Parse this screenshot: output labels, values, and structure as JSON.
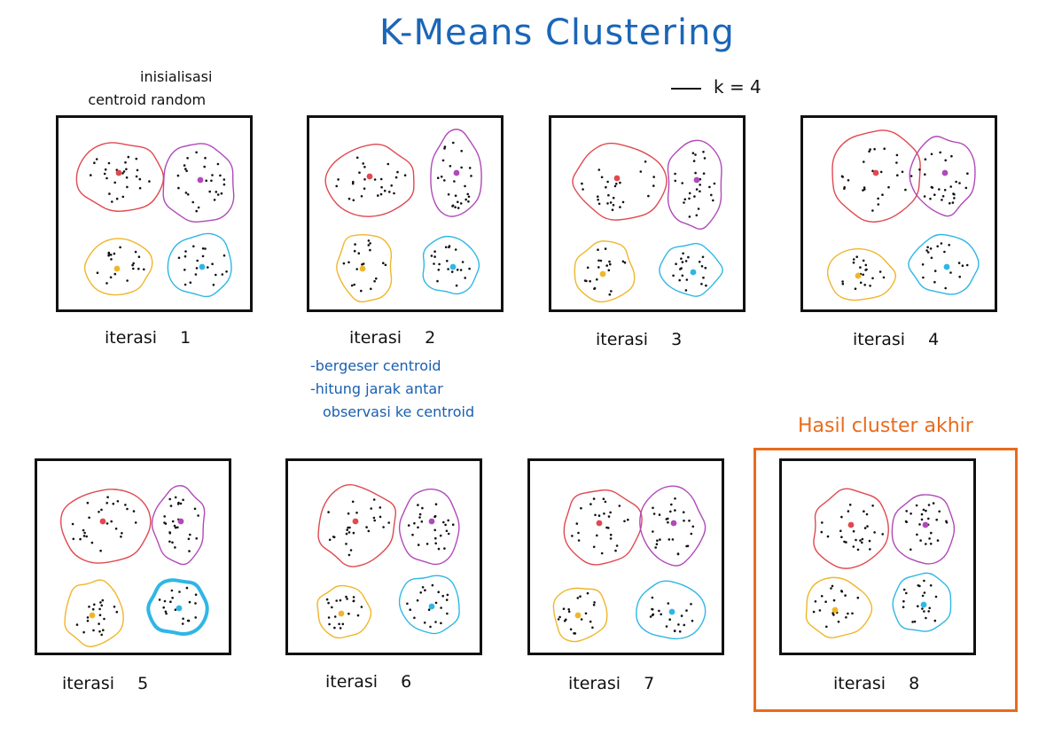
{
  "title": "K-Means Clustering",
  "k_note": "k = 4",
  "init_note": [
    "inisialisasi",
    "centroid random"
  ],
  "blue_note": [
    "-bergeser centroid",
    "-hitung jarak antar",
    "observasi ke centroid"
  ],
  "final_label": "Hasil cluster akhir",
  "iteration_word": "iterasi",
  "colors": {
    "red": "#e0494f",
    "purple": "#b04ab8",
    "yellow": "#f0b62a",
    "cyan": "#2fb6e6",
    "title": "#1a66b8",
    "note": "#1a5fb0",
    "final": "#ea6a1c",
    "dot": "#111111"
  },
  "panels": [
    {
      "number": "1"
    },
    {
      "number": "2"
    },
    {
      "number": "3"
    },
    {
      "number": "4"
    },
    {
      "number": "5"
    },
    {
      "number": "6"
    },
    {
      "number": "7"
    },
    {
      "number": "8"
    }
  ]
}
